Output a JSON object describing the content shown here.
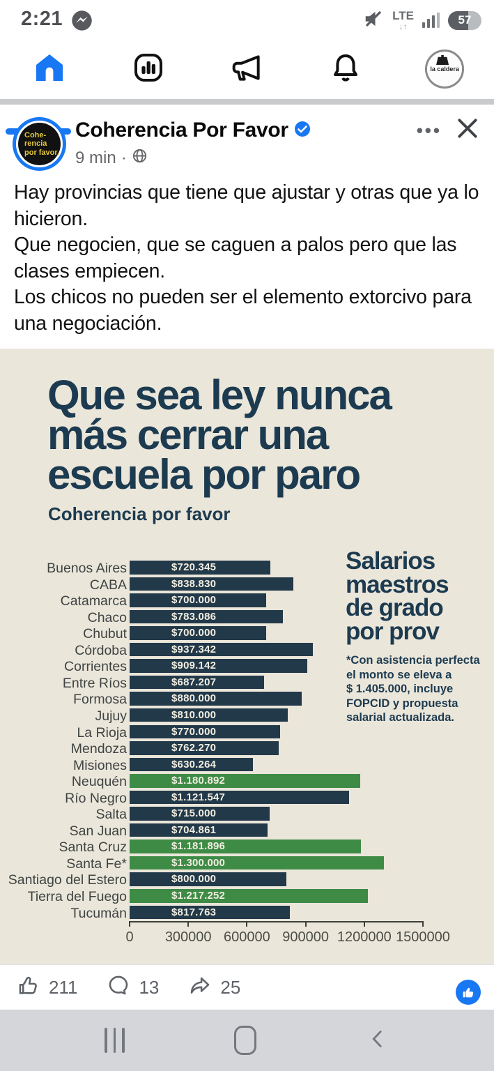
{
  "status_bar": {
    "time": "2:21",
    "network": "LTE",
    "battery_percent": "57",
    "icons": [
      "messenger-icon",
      "mute-icon",
      "lte-arrows-icon",
      "signal-bars-icon",
      "battery-icon"
    ]
  },
  "tab_bar": {
    "tabs": [
      "home",
      "charts",
      "megaphone",
      "notifications",
      "profile"
    ],
    "active_tab": "home",
    "profile_label": "la caldera",
    "accent_color": "#1877f2"
  },
  "post": {
    "author": "Coherencia Por Favor",
    "verified": true,
    "time": "9 min",
    "meta_separator": "·",
    "avatar_lines": [
      "Cohe-",
      "rencia",
      "por favor."
    ],
    "menu_dots": "•••",
    "body_paragraphs": [
      "Hay provincias que tiene que ajustar y otras que ya lo hicieron.",
      "Que negocien, que se caguen a palos pero que las clases empiecen.",
      "Los chicos no pueden ser el elemento extorcivo para una negociación."
    ]
  },
  "image": {
    "title_lines": [
      "Que sea ley nunca",
      "más cerrar una",
      "escuela por paro"
    ],
    "subtitle": "Coherencia por favor",
    "side_title_lines": [
      "Salarios",
      "maestros",
      "de grado",
      "por prov"
    ],
    "note_lines": [
      "*Con asistencia perfecta",
      "el monto se eleva a",
      "$ 1.405.000, incluye",
      "FOPCID y propuesta",
      "salarial actualizada."
    ],
    "colors": {
      "background": "#ebe6da",
      "ink": "#1c3b50",
      "bar_navy": "#22394a",
      "bar_green": "#3e8b46"
    }
  },
  "chart_data": {
    "type": "bar",
    "orientation": "horizontal",
    "title": "Salarios maestros de grado por prov",
    "categories": [
      "Buenos Aires",
      "CABA",
      "Catamarca",
      "Chaco",
      "Chubut",
      "Córdoba",
      "Corrientes",
      "Entre Ríos",
      "Formosa",
      "Jujuy",
      "La Rioja",
      "Mendoza",
      "Misiones",
      "Neuquén",
      "Río Negro",
      "Salta",
      "San Juan",
      "Santa Cruz",
      "Santa Fe*",
      "Santiago del Estero",
      "Tierra del Fuego",
      "Tucumán"
    ],
    "values": [
      720345,
      838830,
      700000,
      783086,
      700000,
      937342,
      909142,
      687207,
      880000,
      810000,
      770000,
      762270,
      630264,
      1180892,
      1121547,
      715000,
      704861,
      1181896,
      1300000,
      800000,
      1217252,
      817763
    ],
    "value_labels": [
      "$720.345",
      "$838.830",
      "$700.000",
      "$783.086",
      "$700.000",
      "$937.342",
      "$909.142",
      "$687.207",
      "$880.000",
      "$810.000",
      "$770.000",
      "$762.270",
      "$630.264",
      "$1.180.892",
      "$1.121.547",
      "$715.000",
      "$704.861",
      "$1.181.896",
      "$1.300.000",
      "$800.000",
      "$1.217.252",
      "$817.763"
    ],
    "highlighted_indices": [
      13,
      17,
      18,
      20
    ],
    "highlight_color": "#3e8b46",
    "bar_color": "#22394a",
    "x_ticks": [
      0,
      300000,
      600000,
      900000,
      1200000,
      1500000
    ],
    "x_tick_labels": [
      "0",
      "300000",
      "600000",
      "900000",
      "1200000",
      "1500000"
    ],
    "xlim": [
      0,
      1500000
    ],
    "annotation": "*Con asistencia perfecta el monto se eleva a $ 1.405.000, incluye FOPCID y propuesta salarial actualizada."
  },
  "engagement": {
    "likes": "211",
    "comments": "13",
    "shares": "25"
  },
  "bottom_nav": {
    "icons": [
      "recents-icon",
      "home-icon",
      "back-icon"
    ]
  }
}
